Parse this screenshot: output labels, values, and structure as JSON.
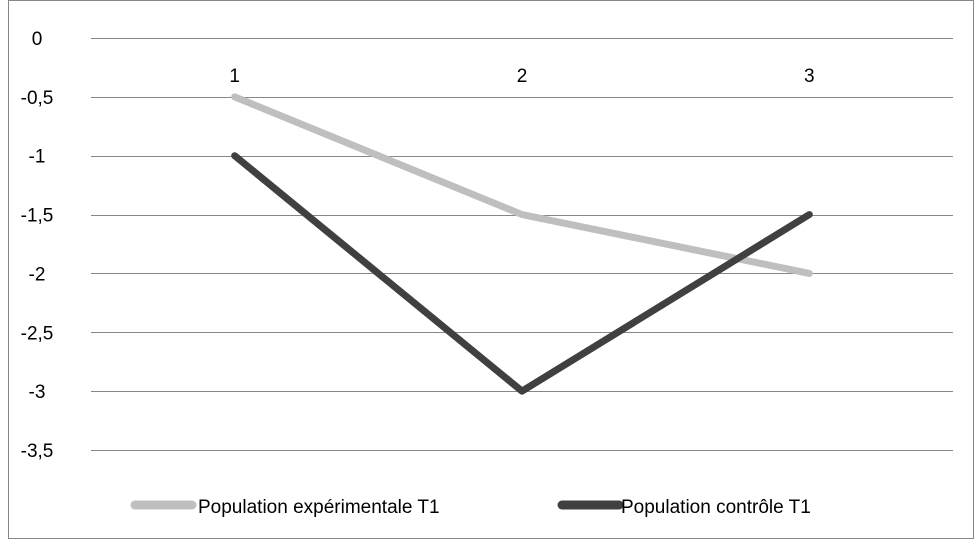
{
  "chart_data": {
    "type": "line",
    "categories": [
      "1",
      "2",
      "3"
    ],
    "x_axis_position": "top",
    "ylim": [
      -3.5,
      0
    ],
    "y_ticks": [
      "0",
      "-0,5",
      "-1",
      "-1,5",
      "-2",
      "-2,5",
      "-3",
      "-3,5"
    ],
    "y_tick_values": [
      0,
      -0.5,
      -1,
      -1.5,
      -2,
      -2.5,
      -3,
      -3.5
    ],
    "grid": true,
    "legend_position": "bottom",
    "series": [
      {
        "name": "Population expérimentale T1",
        "values": [
          -0.5,
          -1.5,
          -2
        ],
        "color": "#bfbfbf"
      },
      {
        "name": "Population contrôle T1",
        "values": [
          -1,
          -3,
          -1.5
        ],
        "color": "#404040"
      }
    ]
  },
  "colors": {
    "grid": "#878787",
    "frame": "#878787",
    "background": "#ffffff"
  }
}
